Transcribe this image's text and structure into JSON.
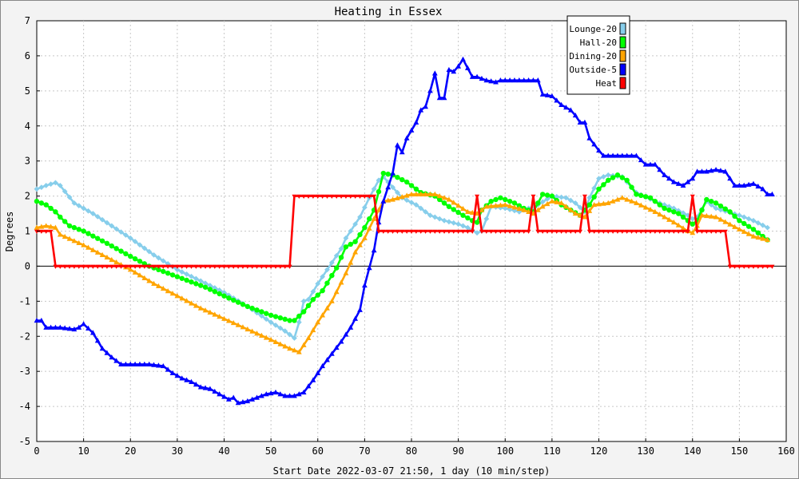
{
  "chart_data": {
    "type": "line",
    "title": "Heating in Essex",
    "xlabel": "Start Date 2022-03-07 21:50, 1 day (10 min/step)",
    "ylabel": "Degrees",
    "xlim": [
      0,
      160
    ],
    "ylim": [
      -5,
      7
    ],
    "xticks": [
      0,
      10,
      20,
      30,
      40,
      50,
      60,
      70,
      80,
      90,
      100,
      110,
      120,
      130,
      140,
      150,
      160
    ],
    "yticks": [
      -5,
      -4,
      -3,
      -2,
      -1,
      0,
      1,
      2,
      3,
      4,
      5,
      6,
      7
    ],
    "grid": true,
    "legend_position": "top-right",
    "series": [
      {
        "name": "Lounge-20",
        "color": "#87ceeb",
        "marker": "diamond",
        "points": [
          [
            0,
            2.2
          ],
          [
            2,
            2.3
          ],
          [
            4,
            2.38
          ],
          [
            5,
            2.3
          ],
          [
            8,
            1.8
          ],
          [
            12,
            1.5
          ],
          [
            16,
            1.15
          ],
          [
            20,
            0.8
          ],
          [
            25,
            0.32
          ],
          [
            30,
            -0.1
          ],
          [
            35,
            -0.42
          ],
          [
            40,
            -0.75
          ],
          [
            45,
            -1.15
          ],
          [
            50,
            -1.6
          ],
          [
            53,
            -1.85
          ],
          [
            55,
            -2.05
          ],
          [
            56,
            -1.6
          ],
          [
            57,
            -1.0
          ],
          [
            58,
            -0.95
          ],
          [
            60,
            -0.5
          ],
          [
            62,
            -0.1
          ],
          [
            65,
            0.5
          ],
          [
            66,
            0.8
          ],
          [
            69,
            1.4
          ],
          [
            71,
            1.95
          ],
          [
            73,
            2.45
          ],
          [
            74,
            2.55
          ],
          [
            76,
            2.25
          ],
          [
            78,
            1.95
          ],
          [
            81,
            1.75
          ],
          [
            84,
            1.45
          ],
          [
            87,
            1.3
          ],
          [
            90,
            1.2
          ],
          [
            92,
            1.1
          ],
          [
            94,
            0.95
          ],
          [
            95,
            1.0
          ],
          [
            97,
            1.7
          ],
          [
            100,
            1.65
          ],
          [
            103,
            1.55
          ],
          [
            105,
            1.65
          ],
          [
            107,
            1.75
          ],
          [
            110,
            2.0
          ],
          [
            113,
            1.95
          ],
          [
            115,
            1.8
          ],
          [
            117,
            1.55
          ],
          [
            118,
            1.95
          ],
          [
            120,
            2.5
          ],
          [
            122,
            2.6
          ],
          [
            125,
            2.55
          ],
          [
            128,
            2.1
          ],
          [
            132,
            1.85
          ],
          [
            136,
            1.65
          ],
          [
            139,
            1.45
          ],
          [
            140,
            1.35
          ],
          [
            141,
            1.4
          ],
          [
            143,
            1.85
          ],
          [
            145,
            1.65
          ],
          [
            150,
            1.45
          ],
          [
            153,
            1.3
          ],
          [
            156,
            1.1
          ]
        ]
      },
      {
        "name": "Hall-20",
        "color": "#00ff00",
        "marker": "circle",
        "points": [
          [
            0,
            1.85
          ],
          [
            2,
            1.75
          ],
          [
            4,
            1.55
          ],
          [
            5,
            1.4
          ],
          [
            7,
            1.15
          ],
          [
            10,
            1.0
          ],
          [
            15,
            0.65
          ],
          [
            20,
            0.28
          ],
          [
            24,
            0.0
          ],
          [
            28,
            -0.2
          ],
          [
            32,
            -0.4
          ],
          [
            36,
            -0.6
          ],
          [
            40,
            -0.85
          ],
          [
            45,
            -1.15
          ],
          [
            50,
            -1.4
          ],
          [
            54,
            -1.55
          ],
          [
            55,
            -1.55
          ],
          [
            57,
            -1.3
          ],
          [
            59,
            -0.95
          ],
          [
            61,
            -0.7
          ],
          [
            64,
            -0.05
          ],
          [
            66,
            0.55
          ],
          [
            68,
            0.7
          ],
          [
            70,
            1.1
          ],
          [
            72,
            1.6
          ],
          [
            74,
            2.65
          ],
          [
            76,
            2.6
          ],
          [
            79,
            2.4
          ],
          [
            82,
            2.1
          ],
          [
            85,
            2.0
          ],
          [
            88,
            1.7
          ],
          [
            91,
            1.45
          ],
          [
            93,
            1.3
          ],
          [
            94,
            1.25
          ],
          [
            95,
            1.6
          ],
          [
            97,
            1.85
          ],
          [
            99,
            1.95
          ],
          [
            102,
            1.8
          ],
          [
            104,
            1.65
          ],
          [
            106,
            1.55
          ],
          [
            108,
            2.05
          ],
          [
            110,
            2.0
          ],
          [
            112,
            1.75
          ],
          [
            114,
            1.6
          ],
          [
            116,
            1.45
          ],
          [
            118,
            1.75
          ],
          [
            120,
            2.2
          ],
          [
            122,
            2.45
          ],
          [
            124,
            2.6
          ],
          [
            126,
            2.45
          ],
          [
            128,
            2.05
          ],
          [
            131,
            1.95
          ],
          [
            134,
            1.65
          ],
          [
            137,
            1.5
          ],
          [
            140,
            1.2
          ],
          [
            141,
            1.3
          ],
          [
            143,
            1.9
          ],
          [
            145,
            1.8
          ],
          [
            148,
            1.55
          ],
          [
            150,
            1.3
          ],
          [
            153,
            1.05
          ],
          [
            156,
            0.75
          ]
        ]
      },
      {
        "name": "Dining-20",
        "color": "#ffa500",
        "marker": "triangle",
        "points": [
          [
            0,
            1.1
          ],
          [
            2,
            1.15
          ],
          [
            4,
            1.1
          ],
          [
            5,
            0.9
          ],
          [
            10,
            0.6
          ],
          [
            15,
            0.25
          ],
          [
            20,
            -0.1
          ],
          [
            25,
            -0.5
          ],
          [
            30,
            -0.85
          ],
          [
            35,
            -1.2
          ],
          [
            40,
            -1.5
          ],
          [
            45,
            -1.8
          ],
          [
            50,
            -2.1
          ],
          [
            54,
            -2.35
          ],
          [
            56,
            -2.45
          ],
          [
            58,
            -2.05
          ],
          [
            60,
            -1.6
          ],
          [
            63,
            -1.0
          ],
          [
            66,
            -0.2
          ],
          [
            68,
            0.4
          ],
          [
            70,
            0.8
          ],
          [
            72,
            1.35
          ],
          [
            74,
            1.85
          ],
          [
            76,
            1.9
          ],
          [
            80,
            2.05
          ],
          [
            85,
            2.05
          ],
          [
            88,
            1.9
          ],
          [
            92,
            1.55
          ],
          [
            94,
            1.5
          ],
          [
            96,
            1.7
          ],
          [
            100,
            1.75
          ],
          [
            104,
            1.6
          ],
          [
            106,
            1.5
          ],
          [
            108,
            1.7
          ],
          [
            110,
            1.85
          ],
          [
            112,
            1.8
          ],
          [
            115,
            1.5
          ],
          [
            117,
            1.4
          ],
          [
            119,
            1.75
          ],
          [
            122,
            1.8
          ],
          [
            125,
            1.95
          ],
          [
            128,
            1.8
          ],
          [
            132,
            1.55
          ],
          [
            136,
            1.25
          ],
          [
            139,
            1.0
          ],
          [
            140,
            0.95
          ],
          [
            141,
            1.15
          ],
          [
            142,
            1.45
          ],
          [
            145,
            1.4
          ],
          [
            150,
            1.05
          ],
          [
            153,
            0.85
          ],
          [
            156,
            0.75
          ]
        ]
      },
      {
        "name": "Outside-5",
        "color": "#0000ff",
        "marker": "triangle",
        "points": [
          [
            0,
            -1.55
          ],
          [
            1,
            -1.55
          ],
          [
            2,
            -1.75
          ],
          [
            5,
            -1.75
          ],
          [
            8,
            -1.8
          ],
          [
            9,
            -1.75
          ],
          [
            10,
            -1.65
          ],
          [
            12,
            -1.9
          ],
          [
            14,
            -2.35
          ],
          [
            16,
            -2.6
          ],
          [
            18,
            -2.8
          ],
          [
            22,
            -2.8
          ],
          [
            24,
            -2.8
          ],
          [
            27,
            -2.85
          ],
          [
            29,
            -3.05
          ],
          [
            31,
            -3.2
          ],
          [
            33,
            -3.3
          ],
          [
            35,
            -3.45
          ],
          [
            37,
            -3.5
          ],
          [
            39,
            -3.65
          ],
          [
            41,
            -3.8
          ],
          [
            42,
            -3.75
          ],
          [
            43,
            -3.9
          ],
          [
            45,
            -3.85
          ],
          [
            47,
            -3.75
          ],
          [
            49,
            -3.65
          ],
          [
            51,
            -3.6
          ],
          [
            53,
            -3.7
          ],
          [
            55,
            -3.7
          ],
          [
            57,
            -3.6
          ],
          [
            59,
            -3.25
          ],
          [
            61,
            -2.85
          ],
          [
            63,
            -2.5
          ],
          [
            65,
            -2.15
          ],
          [
            67,
            -1.75
          ],
          [
            69,
            -1.25
          ],
          [
            70,
            -0.55
          ],
          [
            71,
            -0.05
          ],
          [
            72,
            0.45
          ],
          [
            73,
            1.25
          ],
          [
            74,
            1.85
          ],
          [
            76,
            2.65
          ],
          [
            77,
            3.45
          ],
          [
            78,
            3.25
          ],
          [
            79,
            3.65
          ],
          [
            81,
            4.1
          ],
          [
            82,
            4.45
          ],
          [
            83,
            4.55
          ],
          [
            84,
            5.0
          ],
          [
            85,
            5.5
          ],
          [
            86,
            4.8
          ],
          [
            87,
            4.8
          ],
          [
            88,
            5.6
          ],
          [
            89,
            5.55
          ],
          [
            90,
            5.7
          ],
          [
            91,
            5.9
          ],
          [
            92,
            5.65
          ],
          [
            93,
            5.4
          ],
          [
            94,
            5.4
          ],
          [
            96,
            5.3
          ],
          [
            98,
            5.25
          ],
          [
            99,
            5.3
          ],
          [
            103,
            5.3
          ],
          [
            107,
            5.3
          ],
          [
            108,
            4.9
          ],
          [
            110,
            4.85
          ],
          [
            112,
            4.6
          ],
          [
            114,
            4.45
          ],
          [
            115,
            4.3
          ],
          [
            116,
            4.1
          ],
          [
            117,
            4.1
          ],
          [
            118,
            3.65
          ],
          [
            120,
            3.3
          ],
          [
            121,
            3.15
          ],
          [
            123,
            3.15
          ],
          [
            126,
            3.15
          ],
          [
            128,
            3.15
          ],
          [
            130,
            2.9
          ],
          [
            132,
            2.9
          ],
          [
            134,
            2.6
          ],
          [
            136,
            2.4
          ],
          [
            138,
            2.3
          ],
          [
            140,
            2.5
          ],
          [
            141,
            2.7
          ],
          [
            143,
            2.7
          ],
          [
            145,
            2.75
          ],
          [
            147,
            2.7
          ],
          [
            149,
            2.3
          ],
          [
            151,
            2.3
          ],
          [
            153,
            2.35
          ],
          [
            155,
            2.2
          ],
          [
            156,
            2.05
          ],
          [
            157,
            2.05
          ]
        ]
      },
      {
        "name": "Heat",
        "color": "#ff0000",
        "marker": "triangle-down",
        "points": [
          [
            0,
            1
          ],
          [
            3,
            1
          ],
          [
            4,
            0
          ],
          [
            54,
            0
          ],
          [
            55,
            2
          ],
          [
            72,
            2
          ],
          [
            73,
            1
          ],
          [
            93,
            1
          ],
          [
            94,
            2
          ],
          [
            95,
            1
          ],
          [
            105,
            1
          ],
          [
            106,
            2
          ],
          [
            107,
            1
          ],
          [
            116,
            1
          ],
          [
            117,
            2
          ],
          [
            118,
            1
          ],
          [
            139,
            1
          ],
          [
            140,
            2
          ],
          [
            141,
            1
          ],
          [
            147,
            1
          ],
          [
            148,
            0
          ],
          [
            157,
            0
          ]
        ]
      }
    ]
  }
}
